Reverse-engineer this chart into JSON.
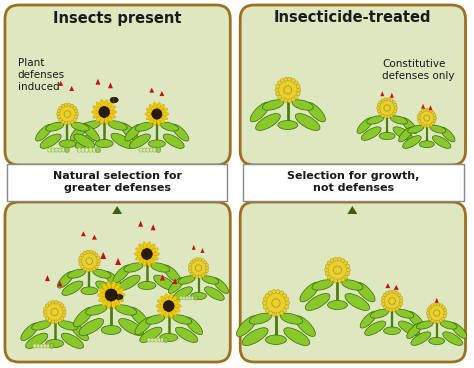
{
  "fig_width": 4.74,
  "fig_height": 3.68,
  "dpi": 100,
  "bg_color": "#ffffff",
  "panel_bg": "#dde8c0",
  "panel_border": "#9B7020",
  "flow_arrow_color": "#3a6010",
  "text_color": "#1a1a1a",
  "box_color": "#ffffff",
  "box_border": "#888888",
  "title_left": "Insects present",
  "title_right": "Insecticide-treated",
  "label_tl": "Plant\ndefenses\ninduced",
  "label_tr": "Constitutive\ndefenses only",
  "box_left": "Natural selection for\ngreater defenses",
  "box_right": "Selection for growth,\nnot defenses",
  "leaf_color": "#88c828",
  "leaf_dark": "#4a8010",
  "leaf_edge": "#3a6808",
  "flower_yellow": "#e8d030",
  "flower_edge": "#b09010",
  "sun_center": "#2a1a08",
  "arrow_red": "#cc1010",
  "caterpillar": "#d8e8a0",
  "bug_color": "#3a3010"
}
